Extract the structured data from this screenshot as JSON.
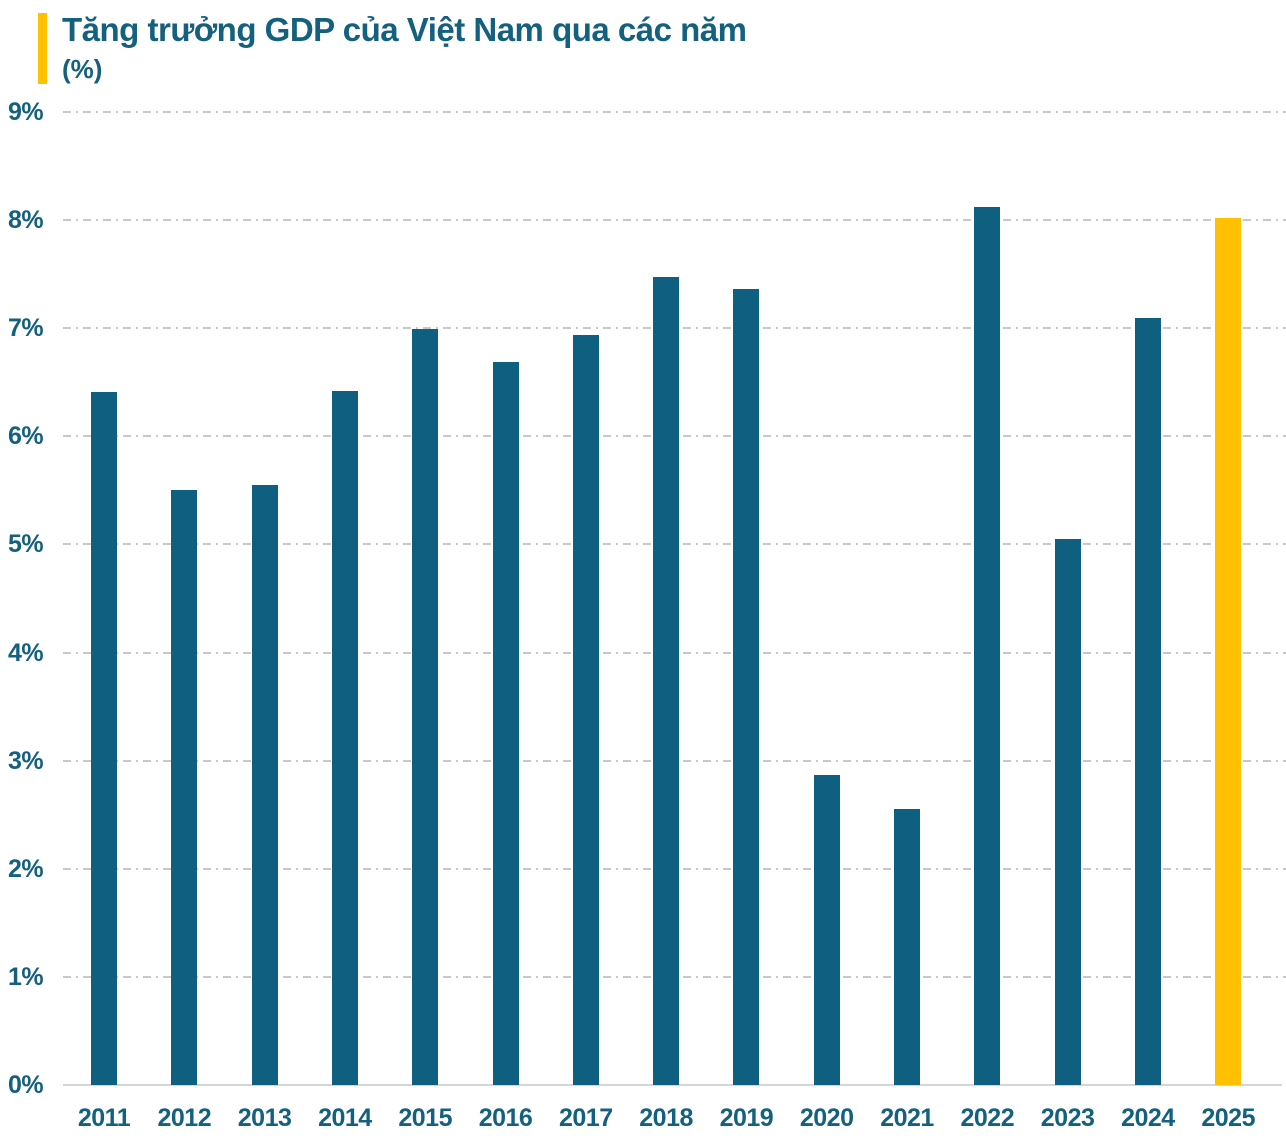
{
  "header": {
    "title": "Tăng trưởng GDP của Việt Nam qua các năm",
    "subtitle": "(%)"
  },
  "colors": {
    "text": "#14607F",
    "bar": "#0F5F80",
    "highlight": "#FFC000",
    "grid": "#C8C8C8",
    "axis": "#D5D5D5",
    "accent": "#FFC000"
  },
  "chart_data": {
    "type": "bar",
    "title": "Tăng trưởng GDP của Việt Nam qua các năm",
    "xlabel": "",
    "ylabel": "(%)",
    "categories": [
      "2011",
      "2012",
      "2013",
      "2014",
      "2015",
      "2016",
      "2017",
      "2018",
      "2019",
      "2020",
      "2021",
      "2022",
      "2023",
      "2024",
      "2025"
    ],
    "values": [
      6.41,
      5.5,
      5.55,
      6.42,
      6.99,
      6.69,
      6.94,
      7.47,
      7.36,
      2.87,
      2.55,
      8.12,
      5.05,
      7.09,
      8.02
    ],
    "highlight_category": "2025",
    "highlight_index": 14,
    "ylim": [
      0,
      9
    ],
    "ytick_step": 1,
    "yticks": [
      {
        "value": 9,
        "label": "9%"
      },
      {
        "value": 8,
        "label": "8%"
      },
      {
        "value": 7,
        "label": "7%"
      },
      {
        "value": 6,
        "label": "6%"
      },
      {
        "value": 5,
        "label": "5%"
      },
      {
        "value": 4,
        "label": "4%"
      },
      {
        "value": 3,
        "label": "3%"
      },
      {
        "value": 2,
        "label": "2%"
      },
      {
        "value": 1,
        "label": "1%"
      },
      {
        "value": 0,
        "label": "0%"
      }
    ],
    "grid": "horizontal dash-dot",
    "legend": "none"
  }
}
